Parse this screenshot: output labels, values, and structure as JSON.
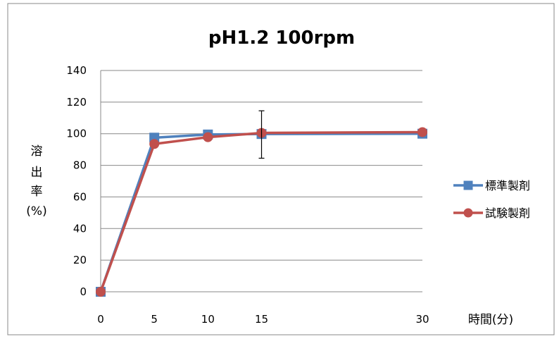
{
  "chart_data": {
    "type": "line",
    "title": "pH1.2  100rpm",
    "xlabel": "時間(分)",
    "ylabel_lines": [
      "溶",
      "出",
      "率",
      "(%)"
    ],
    "x": [
      0,
      5,
      10,
      15,
      30
    ],
    "x_ticks": [
      "0",
      "5",
      "10",
      "15",
      "30"
    ],
    "ylim": [
      0,
      140
    ],
    "y_ticks": [
      "0",
      "20",
      "40",
      "60",
      "80",
      "100",
      "120",
      "140"
    ],
    "grid": true,
    "legend_position": "right",
    "series": [
      {
        "name": "標準製剤",
        "color": "#4F81BD",
        "marker": "square",
        "values": [
          0,
          97.5,
          99.5,
          99.8,
          100.0
        ]
      },
      {
        "name": "試験製剤",
        "color": "#C0504D",
        "marker": "circle",
        "values": [
          0,
          93.5,
          97.8,
          100.5,
          101.0
        ]
      }
    ],
    "error_bars": [
      {
        "x": 15,
        "low": 84.5,
        "high": 114.5
      }
    ]
  }
}
